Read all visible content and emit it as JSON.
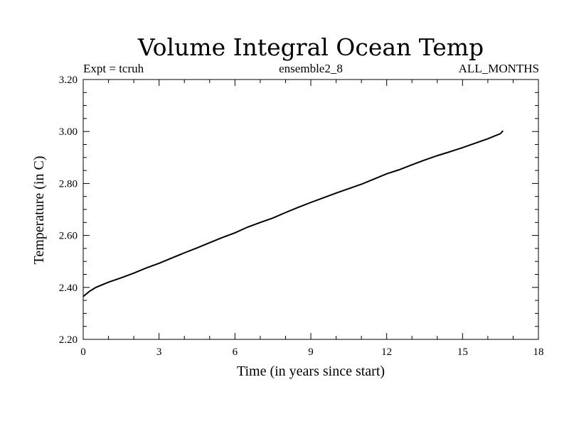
{
  "chart_data": {
    "type": "line",
    "title": "Volume Integral Ocean Temp",
    "subtitle_left": "Expt = tcruh",
    "subtitle_center": "ensemble2_8",
    "subtitle_right": "ALL_MONTHS",
    "xlabel": "Time (in years since start)",
    "ylabel": "Temperature (in C)",
    "xlim": [
      0,
      18
    ],
    "ylim": [
      2.2,
      3.2
    ],
    "x_ticks": [
      "0",
      "3",
      "6",
      "9",
      "12",
      "15",
      "18"
    ],
    "y_ticks": [
      "2.20",
      "2.40",
      "2.60",
      "2.80",
      "3.00",
      "3.20"
    ],
    "grid": false,
    "series": [
      {
        "name": "Volume Integral Ocean Temp",
        "x": [
          0,
          0.25,
          0.5,
          1,
          1.5,
          2,
          2.5,
          3,
          3.5,
          4,
          4.5,
          5,
          5.5,
          6,
          6.5,
          7,
          7.5,
          8,
          8.5,
          9,
          9.5,
          10,
          10.5,
          11,
          11.5,
          12,
          12.5,
          13,
          13.5,
          14,
          14.5,
          15,
          15.5,
          16,
          16.5,
          16.6
        ],
        "y": [
          2.365,
          2.385,
          2.4,
          2.42,
          2.437,
          2.455,
          2.475,
          2.493,
          2.513,
          2.533,
          2.552,
          2.572,
          2.592,
          2.61,
          2.632,
          2.65,
          2.667,
          2.688,
          2.708,
          2.727,
          2.745,
          2.763,
          2.78,
          2.797,
          2.817,
          2.837,
          2.853,
          2.872,
          2.89,
          2.907,
          2.922,
          2.938,
          2.955,
          2.972,
          2.992,
          3.003
        ]
      }
    ]
  }
}
